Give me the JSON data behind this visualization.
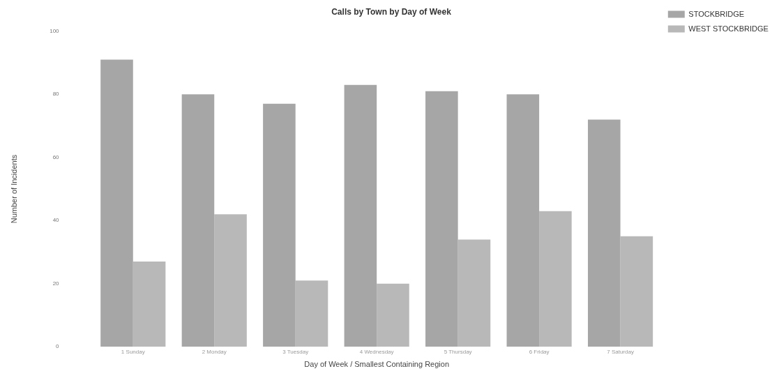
{
  "chart_data": {
    "type": "bar",
    "title": "Calls by Town by Day of Week",
    "xlabel": "Day of Week / Smallest Containing Region",
    "ylabel": "Number of Incidents",
    "categories": [
      "1 Sunday",
      "2 Monday",
      "3 Tuesday",
      "4 Wednesday",
      "5 Thursday",
      "6 Friday",
      "7 Saturday"
    ],
    "series": [
      {
        "name": "STOCKBRIDGE",
        "color": "#a6a6a6",
        "values": [
          91,
          80,
          77,
          83,
          81,
          80,
          72
        ]
      },
      {
        "name": "WEST STOCKBRIDGE",
        "color": "#b8b8b8",
        "values": [
          27,
          42,
          21,
          20,
          34,
          43,
          35
        ]
      }
    ],
    "ylim": [
      0,
      100
    ],
    "yticks": [
      0,
      20,
      40,
      60,
      80,
      100
    ],
    "grid": false,
    "legend": "top right"
  }
}
